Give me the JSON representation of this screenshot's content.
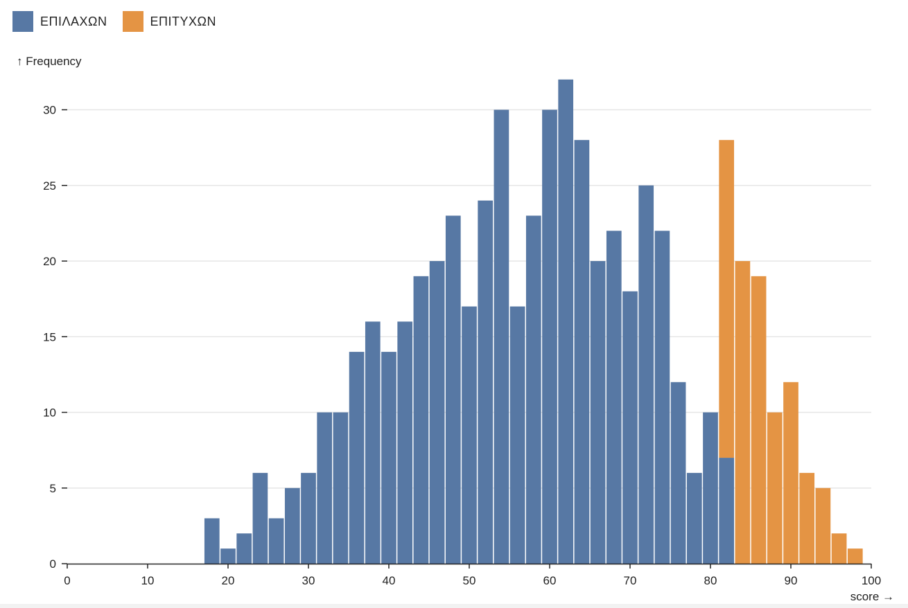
{
  "legend": [
    {
      "label": "ΕΠΙΛΑΧΩΝ",
      "color": "#5778a4"
    },
    {
      "label": "ΕΠΙΤΥΧΩΝ",
      "color": "#e49444"
    }
  ],
  "chart_data": {
    "type": "bar",
    "subtype": "stacked-histogram",
    "title": "",
    "xlabel": "score →",
    "ylabel": "↑ Frequency",
    "xlim": [
      0,
      100
    ],
    "ylim": [
      0,
      33
    ],
    "bin_width": 2,
    "x_ticks": [
      0,
      10,
      20,
      30,
      40,
      50,
      60,
      70,
      80,
      90,
      100
    ],
    "y_ticks": [
      0,
      5,
      10,
      15,
      20,
      25,
      30
    ],
    "grid": "horizontal",
    "legend_position": "top-left",
    "bin_starts": [
      17,
      19,
      21,
      23,
      25,
      27,
      29,
      31,
      33,
      35,
      37,
      39,
      41,
      43,
      45,
      47,
      49,
      51,
      53,
      55,
      57,
      59,
      61,
      63,
      65,
      67,
      69,
      71,
      73,
      75,
      77,
      79,
      81,
      83,
      85,
      87,
      89,
      91,
      93,
      95,
      97
    ],
    "series": [
      {
        "name": "ΕΠΙΛΑΧΩΝ",
        "color": "#5778a4",
        "values": [
          3,
          1,
          2,
          6,
          3,
          5,
          6,
          10,
          10,
          14,
          16,
          14,
          16,
          19,
          20,
          23,
          17,
          24,
          30,
          17,
          23,
          30,
          32,
          28,
          20,
          22,
          18,
          25,
          22,
          12,
          6,
          10,
          7,
          0,
          0,
          0,
          0,
          0,
          0,
          0,
          0
        ]
      },
      {
        "name": "ΕΠΙΤΥΧΩΝ",
        "color": "#e49444",
        "values": [
          0,
          0,
          0,
          0,
          0,
          0,
          0,
          0,
          0,
          0,
          0,
          0,
          0,
          0,
          0,
          0,
          0,
          0,
          0,
          0,
          0,
          0,
          0,
          0,
          0,
          0,
          0,
          0,
          0,
          0,
          0,
          0,
          21,
          20,
          19,
          10,
          12,
          6,
          5,
          2,
          1
        ]
      }
    ]
  }
}
